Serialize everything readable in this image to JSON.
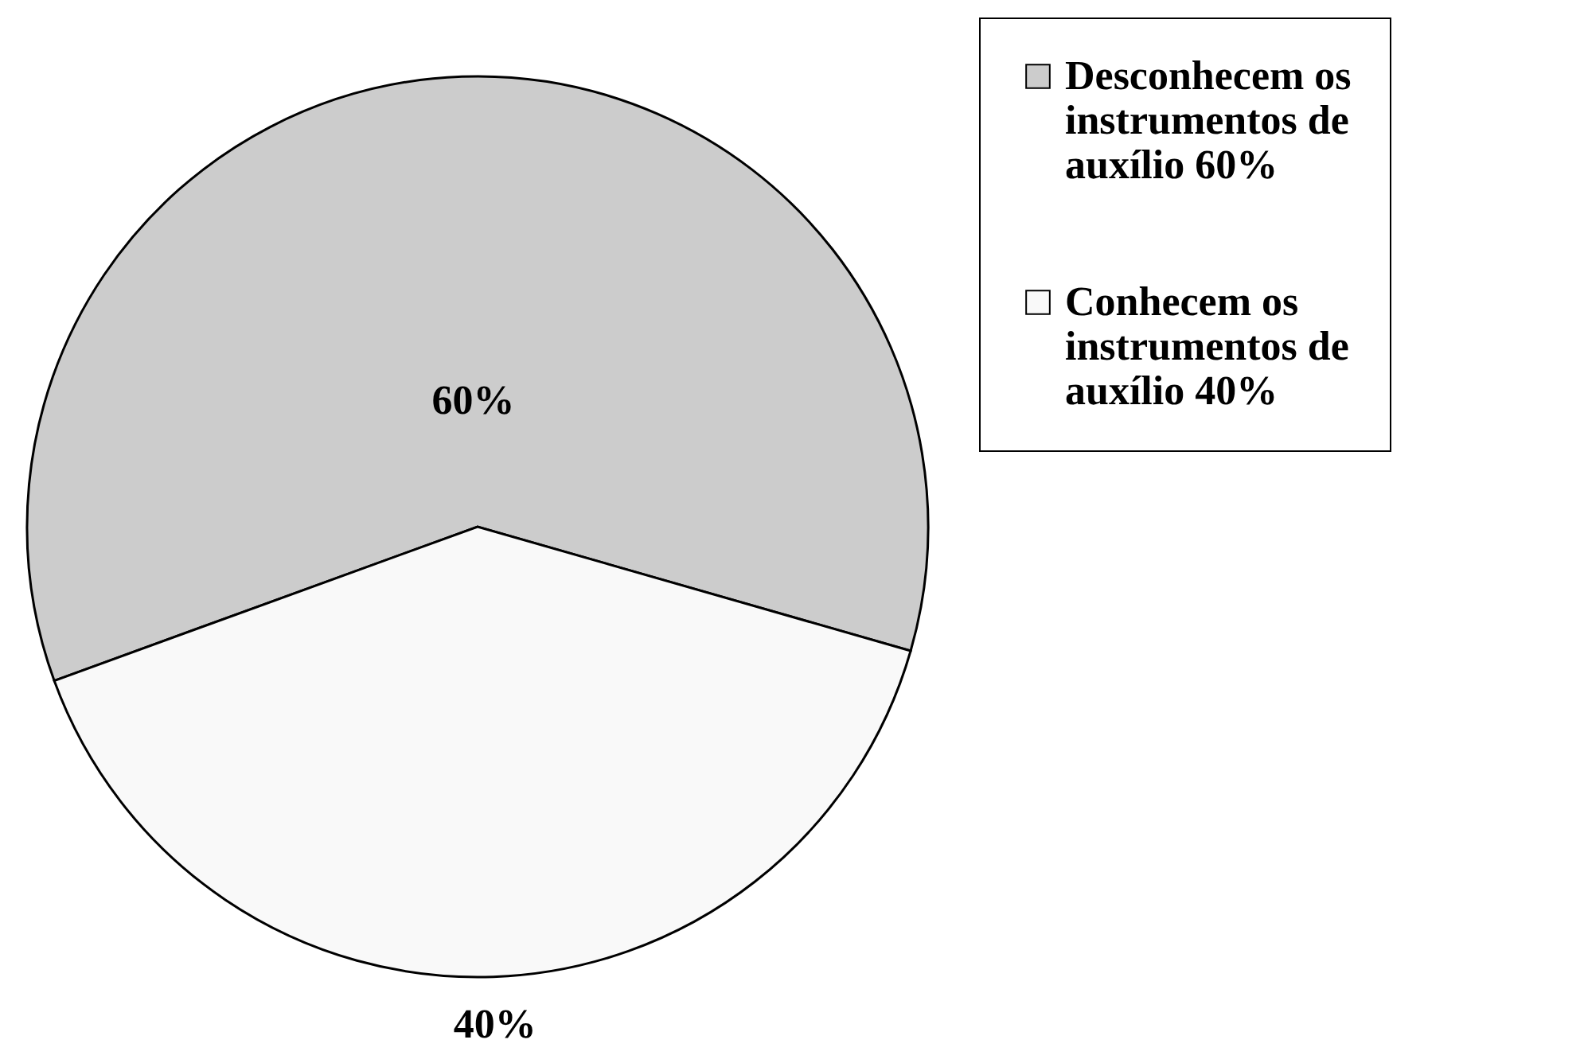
{
  "chart_data": {
    "type": "pie",
    "categories": [
      "Desconhecem os instrumentos de auxílio 60%",
      "Conhecem os instrumentos de auxílio 40%"
    ],
    "values": [
      60,
      40
    ],
    "colors": [
      "#cccccc",
      "#f9f9f9"
    ],
    "value_labels": [
      "60%",
      "40%"
    ],
    "legend": "right"
  }
}
